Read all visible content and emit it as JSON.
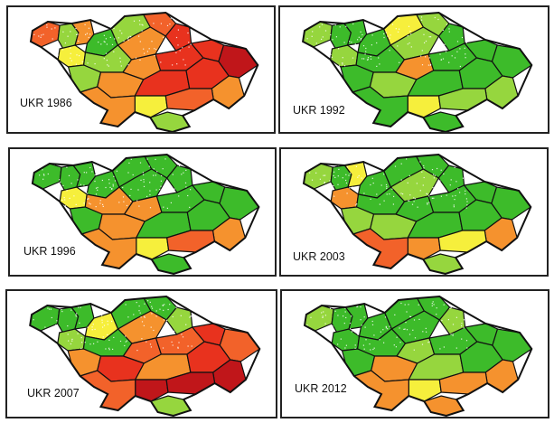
{
  "colors": {
    "dark_red": "#c0161a",
    "red": "#e8321e",
    "orange_red": "#f2622a",
    "orange": "#f5922e",
    "yellow_orange": "#f8c23a",
    "yellow": "#f6ef3c",
    "light_green": "#96d63e",
    "green": "#3dbb2a",
    "grey": "#b9b9b9",
    "border": "#111111",
    "stipple": "#ffffff"
  },
  "panels": [
    {
      "label": "UKR 1986",
      "regions": [
        "orange_red",
        "light_green",
        "yellow",
        "orange",
        "green",
        "light_green",
        "orange_red",
        "red",
        "orange",
        "light_green",
        "light_green",
        "orange",
        "red",
        "red",
        "orange",
        "red",
        "red",
        "dark_red",
        "orange",
        "yellow",
        "orange_red",
        "orange",
        "light_green"
      ]
    },
    {
      "label": "UKR 1992",
      "regions": [
        "light_green",
        "green",
        "light_green",
        "green",
        "green",
        "yellow",
        "light_green",
        "green",
        "light_green",
        "green",
        "green",
        "orange",
        "green",
        "green",
        "light_green",
        "green",
        "green",
        "green",
        "light_green",
        "yellow",
        "light_green",
        "green",
        "green"
      ]
    },
    {
      "label": "UKR 1996",
      "regions": [
        "green",
        "green",
        "yellow",
        "green",
        "green",
        "green",
        "green",
        "green",
        "green",
        "orange",
        "green",
        "orange",
        "green",
        "green",
        "orange",
        "green",
        "green",
        "green",
        "orange",
        "yellow",
        "orange_red",
        "orange",
        "green"
      ]
    },
    {
      "label": "UKR 2003",
      "regions": [
        "light_green",
        "green",
        "orange",
        "yellow",
        "green",
        "green",
        "green",
        "green",
        "light_green",
        "green",
        "light_green",
        "green",
        "green",
        "green",
        "light_green",
        "green",
        "green",
        "green",
        "orange",
        "orange",
        "yellow",
        "orange_red",
        "light_green"
      ]
    },
    {
      "label": "UKR 2007",
      "regions": [
        "green",
        "green",
        "light_green",
        "green",
        "yellow",
        "green",
        "green",
        "light_green",
        "orange",
        "green",
        "orange",
        "orange_red",
        "orange_red",
        "red",
        "red",
        "orange",
        "red",
        "orange_red",
        "dark_red",
        "dark_red",
        "dark_red",
        "orange_red",
        "light_green"
      ]
    },
    {
      "label": "UKR 2012",
      "regions": [
        "light_green",
        "green",
        "green",
        "green",
        "green",
        "green",
        "green",
        "light_green",
        "green",
        "green",
        "green",
        "light_green",
        "green",
        "green",
        "orange",
        "light_green",
        "green",
        "green",
        "orange",
        "yellow",
        "orange",
        "orange",
        "orange"
      ]
    }
  ]
}
